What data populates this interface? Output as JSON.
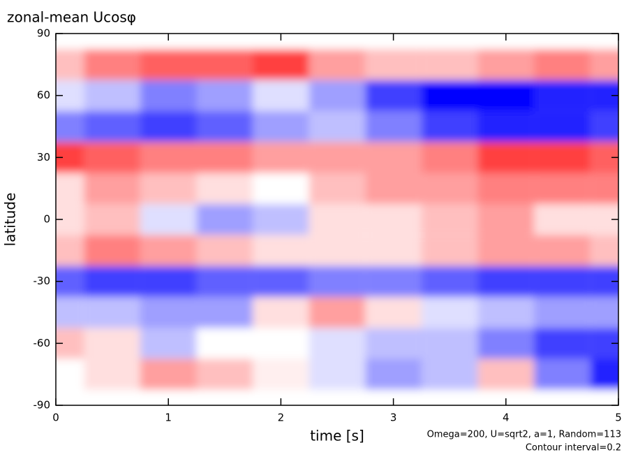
{
  "chart_data": {
    "type": "contour",
    "title": "zonal-mean Ucosφ",
    "x_label": "time [s]",
    "y_label": "latitude",
    "annotations": [
      "Omega=200, U=sqrt2, a=1, Random=113",
      "Contour interval=0.2"
    ],
    "x": [
      0,
      0.5,
      1,
      1.5,
      2,
      2.5,
      3,
      3.5,
      4,
      4.5,
      5
    ],
    "y": [
      -90,
      -75,
      -60,
      -45,
      -30,
      -15,
      0,
      15,
      30,
      45,
      60,
      75,
      90
    ],
    "z": [
      [
        0,
        0,
        0,
        0,
        0,
        0,
        0,
        0,
        0,
        0,
        0
      ],
      [
        0,
        0.2,
        0.6,
        0.4,
        0.1,
        -0.2,
        -0.6,
        -0.4,
        0.4,
        -0.8,
        -1.4
      ],
      [
        0.4,
        0.2,
        -0.4,
        0,
        0,
        -0.2,
        -0.4,
        -0.4,
        -0.8,
        -1.2,
        -1.2
      ],
      [
        -0.4,
        -0.4,
        -0.6,
        -0.6,
        0.2,
        0.6,
        0.2,
        -0.2,
        -0.4,
        -0.6,
        -0.6
      ],
      [
        -1.0,
        -1.2,
        -1.2,
        -1.0,
        -1.0,
        -0.8,
        -0.8,
        -1.0,
        -1.2,
        -1.2,
        -1.2
      ],
      [
        0.4,
        0.8,
        0.6,
        0.4,
        0.2,
        0.2,
        0.2,
        0.4,
        0.6,
        0.6,
        0.4
      ],
      [
        0.2,
        0.4,
        -0.2,
        -0.6,
        -0.4,
        0.2,
        0.2,
        0.4,
        0.6,
        0.2,
        0.2
      ],
      [
        0.2,
        0.6,
        0.4,
        0.2,
        0,
        0.4,
        0.6,
        0.6,
        0.8,
        0.8,
        0.8
      ],
      [
        1.2,
        1.0,
        0.8,
        0.8,
        0.6,
        0.6,
        0.6,
        0.8,
        1.2,
        1.2,
        1.0
      ],
      [
        -0.8,
        -1.0,
        -1.2,
        -1.0,
        -0.6,
        -0.4,
        -0.8,
        -1.2,
        -1.4,
        -1.4,
        -1.2
      ],
      [
        -0.2,
        -0.4,
        -0.8,
        -0.6,
        -0.2,
        -0.6,
        -1.2,
        -1.6,
        -1.6,
        -1.4,
        -1.4
      ],
      [
        0.4,
        0.8,
        1.0,
        1.0,
        1.2,
        0.6,
        0.4,
        0.4,
        0.6,
        0.8,
        0.6
      ],
      [
        0,
        0,
        0,
        0,
        0,
        0,
        0,
        0,
        0,
        0,
        0
      ]
    ],
    "zlim": [
      -1.6,
      1.6
    ],
    "negative_color": "#0000ff",
    "positive_color": "#ff0000",
    "xlim": [
      0,
      5
    ],
    "xticks": [
      0,
      1,
      2,
      3,
      4,
      5
    ],
    "ylim": [
      -90,
      90
    ],
    "yticks": [
      -90,
      -60,
      -30,
      0,
      30,
      60,
      90
    ]
  }
}
